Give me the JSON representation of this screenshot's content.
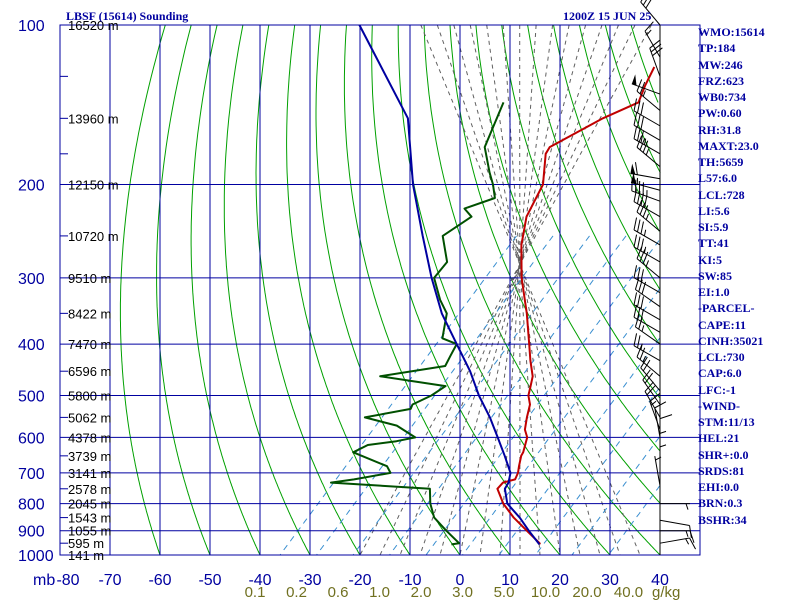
{
  "header": {
    "title": "LBSF (15614) Sounding",
    "time": "1200Z 15 JUN 25"
  },
  "indices": [
    "WMO:15614",
    "TP:184",
    "MW:246",
    "FRZ:623",
    "WB0:734",
    "PW:0.60",
    "RH:31.8",
    "MAXT:23.0",
    "TH:5659",
    "L57:6.0",
    "LCL:728",
    "LI:5.6",
    "SI:5.9",
    "TT:41",
    "KI:5",
    "SW:85",
    "EI:1.0",
    "-PARCEL-",
    "CAPE:11",
    "CINH:35021",
    "LCL:730",
    "CAP:6.0",
    "LFC:-1",
    "-WIND-",
    "STM:11/13",
    "HEL:21",
    "SHR+:0.0",
    "SRDS:81",
    "EHI:0.0",
    "BRN:0.3",
    "BSHR:34"
  ],
  "colors": {
    "grid": "#0000a0",
    "dry_adiabat": "#00a000",
    "moist_adiabat": "#606060",
    "mixing_ratio": "#3a8fd0",
    "temperature": "#c00000",
    "dewpoint": "#005000",
    "parcel": "#0000a0",
    "mixing_label": "#707020",
    "wind": "#000000"
  },
  "chart_data": {
    "type": "skew-t",
    "xlabel": "mb",
    "pressure_ticks": [
      100,
      200,
      300,
      400,
      500,
      600,
      700,
      800,
      900,
      1000
    ],
    "temperature_ticks": [
      -80,
      -70,
      -60,
      -50,
      -40,
      -30,
      -20,
      -10,
      0,
      10,
      20,
      30,
      40
    ],
    "xlim": [
      -80,
      40
    ],
    "ylim": [
      1000,
      100
    ],
    "height_labels": [
      {
        "p": 100,
        "text": "16520 m"
      },
      {
        "p": 150,
        "text": "13960 m"
      },
      {
        "p": 200,
        "text": "12150 m"
      },
      {
        "p": 250,
        "text": "10720 m"
      },
      {
        "p": 300,
        "text": "9510 m"
      },
      {
        "p": 350,
        "text": "8422 m"
      },
      {
        "p": 400,
        "text": "7470 m"
      },
      {
        "p": 450,
        "text": "6596 m"
      },
      {
        "p": 500,
        "text": "5800 m"
      },
      {
        "p": 550,
        "text": "5062 m"
      },
      {
        "p": 600,
        "text": "4378 m"
      },
      {
        "p": 650,
        "text": "3739 m"
      },
      {
        "p": 700,
        "text": "3141 m"
      },
      {
        "p": 750,
        "text": "2578 m"
      },
      {
        "p": 800,
        "text": "2045 m"
      },
      {
        "p": 850,
        "text": "1543 m"
      },
      {
        "p": 900,
        "text": "1055 m"
      },
      {
        "p": 950,
        "text": "595 m"
      },
      {
        "p": 1000,
        "text": "141 m"
      }
    ],
    "mixing_ratio_labels": [
      "0.1",
      "0.2",
      "0.6",
      "1.0",
      "2.0",
      "3.0",
      "5.0",
      "10.0",
      "20.0",
      "40.0"
    ],
    "mixing_ratio_unit": "g/kg",
    "series": [
      {
        "key": "temperature",
        "points": [
          [
            100,
            -57
          ],
          [
            120,
            -56.8
          ],
          [
            130,
            -55
          ],
          [
            140,
            -53
          ],
          [
            150,
            -57
          ],
          [
            170,
            -62
          ],
          [
            175,
            -61.5
          ],
          [
            200,
            -56
          ],
          [
            230,
            -53
          ],
          [
            260,
            -48.5
          ],
          [
            300,
            -42
          ],
          [
            350,
            -34
          ],
          [
            400,
            -27.5
          ],
          [
            430,
            -24
          ],
          [
            460,
            -20.5
          ],
          [
            480,
            -19
          ],
          [
            500,
            -17.6
          ],
          [
            520,
            -15.5
          ],
          [
            550,
            -13.6
          ],
          [
            580,
            -11.6
          ],
          [
            600,
            -9.6
          ],
          [
            640,
            -7.5
          ],
          [
            650,
            -7.2
          ],
          [
            680,
            -5.6
          ],
          [
            700,
            -4.5
          ],
          [
            720,
            -3.8
          ],
          [
            730,
            -5.6
          ],
          [
            750,
            -5.5
          ],
          [
            800,
            -1.4
          ],
          [
            850,
            3.4
          ],
          [
            900,
            8.6
          ],
          [
            950,
            13.6
          ],
          [
            955,
            13.9
          ]
        ]
      },
      {
        "key": "dewpoint",
        "points": [
          [
            140,
            -80
          ],
          [
            170,
            -75
          ],
          [
            190,
            -69
          ],
          [
            200,
            -66
          ],
          [
            212,
            -63
          ],
          [
            222,
            -67
          ],
          [
            230,
            -64
          ],
          [
            250,
            -66
          ],
          [
            280,
            -60
          ],
          [
            300,
            -59.5
          ],
          [
            330,
            -54
          ],
          [
            350,
            -50
          ],
          [
            390,
            -46
          ],
          [
            400,
            -42
          ],
          [
            420,
            -41
          ],
          [
            440,
            -40
          ],
          [
            460,
            -51
          ],
          [
            480,
            -36
          ],
          [
            500,
            -37
          ],
          [
            520,
            -39
          ],
          [
            530,
            -38.5
          ],
          [
            550,
            -46
          ],
          [
            570,
            -38
          ],
          [
            600,
            -32
          ],
          [
            610,
            -35
          ],
          [
            620,
            -40
          ],
          [
            640,
            -41.5
          ],
          [
            680,
            -32
          ],
          [
            700,
            -30
          ],
          [
            720,
            -36
          ],
          [
            730,
            -40
          ],
          [
            750,
            -19
          ],
          [
            800,
            -16
          ],
          [
            850,
            -12.5
          ],
          [
            900,
            -7.5
          ],
          [
            950,
            -2.5
          ],
          [
            955,
            -3.8
          ]
        ]
      },
      {
        "key": "parcel",
        "points": [
          [
            100,
            -124
          ],
          [
            150,
            -96
          ],
          [
            200,
            -82
          ],
          [
            250,
            -70
          ],
          [
            300,
            -60
          ],
          [
            350,
            -51
          ],
          [
            400,
            -42
          ],
          [
            450,
            -34
          ],
          [
            500,
            -27.5
          ],
          [
            550,
            -21
          ],
          [
            600,
            -15.5
          ],
          [
            650,
            -10.5
          ],
          [
            700,
            -6
          ],
          [
            730,
            -4.5
          ],
          [
            750,
            -4
          ],
          [
            800,
            -0.6
          ],
          [
            850,
            4.6
          ],
          [
            900,
            9
          ],
          [
            955,
            13.8
          ]
        ]
      }
    ],
    "wind_barbs": [
      {
        "p": 100,
        "dir": 320,
        "spd": 30
      },
      {
        "p": 115,
        "dir": 330,
        "spd": 15
      },
      {
        "p": 125,
        "dir": 340,
        "spd": 30
      },
      {
        "p": 135,
        "dir": 290,
        "spd": 50
      },
      {
        "p": 145,
        "dir": 310,
        "spd": 25
      },
      {
        "p": 155,
        "dir": 300,
        "spd": 30
      },
      {
        "p": 165,
        "dir": 300,
        "spd": 30
      },
      {
        "p": 175,
        "dir": 300,
        "spd": 35
      },
      {
        "p": 185,
        "dir": 310,
        "spd": 35
      },
      {
        "p": 195,
        "dir": 280,
        "spd": 60
      },
      {
        "p": 205,
        "dir": 285,
        "spd": 55
      },
      {
        "p": 215,
        "dir": 290,
        "spd": 45
      },
      {
        "p": 230,
        "dir": 300,
        "spd": 40
      },
      {
        "p": 245,
        "dir": 310,
        "spd": 35
      },
      {
        "p": 260,
        "dir": 300,
        "spd": 35
      },
      {
        "p": 280,
        "dir": 300,
        "spd": 35
      },
      {
        "p": 300,
        "dir": 310,
        "spd": 35
      },
      {
        "p": 320,
        "dir": 300,
        "spd": 30
      },
      {
        "p": 340,
        "dir": 305,
        "spd": 30
      },
      {
        "p": 360,
        "dir": 300,
        "spd": 30
      },
      {
        "p": 380,
        "dir": 300,
        "spd": 30
      },
      {
        "p": 400,
        "dir": 305,
        "spd": 25
      },
      {
        "p": 430,
        "dir": 300,
        "spd": 25
      },
      {
        "p": 460,
        "dir": 310,
        "spd": 25
      },
      {
        "p": 490,
        "dir": 320,
        "spd": 20
      },
      {
        "p": 520,
        "dir": 325,
        "spd": 20
      },
      {
        "p": 550,
        "dir": 330,
        "spd": 20
      },
      {
        "p": 580,
        "dir": 340,
        "spd": 15
      },
      {
        "p": 600,
        "dir": 350,
        "spd": 10
      },
      {
        "p": 630,
        "dir": 360,
        "spd": 10
      },
      {
        "p": 660,
        "dir": 360,
        "spd": 5
      },
      {
        "p": 700,
        "dir": 360,
        "spd": 5
      },
      {
        "p": 740,
        "dir": 350,
        "spd": 5
      },
      {
        "p": 800,
        "dir": 90,
        "spd": 5
      },
      {
        "p": 860,
        "dir": 100,
        "spd": 10
      },
      {
        "p": 900,
        "dir": 90,
        "spd": 15
      },
      {
        "p": 950,
        "dir": 80,
        "spd": 15
      }
    ]
  }
}
